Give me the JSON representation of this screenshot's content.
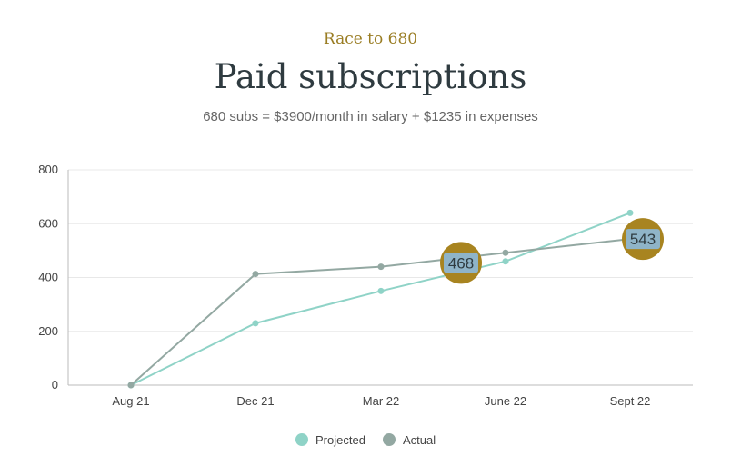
{
  "header": {
    "kicker": "Race to 680",
    "title": "Paid subscriptions",
    "subtitle": "680 subs = $3900/month in salary + $1235 in expenses"
  },
  "colors": {
    "projected": "#8fd3c7",
    "actual": "#93a8a2",
    "annotation_ring": "#a88420",
    "annotation_fill": "#8fb4c8",
    "grid": "#e8e8e8",
    "axis": "#bbbbbb"
  },
  "chart_data": {
    "type": "line",
    "categories": [
      "Aug 21",
      "Dec 21",
      "Mar 22",
      "June 22",
      "Sept 22"
    ],
    "series": [
      {
        "name": "Projected",
        "values": [
          0,
          230,
          350,
          460,
          640
        ]
      },
      {
        "name": "Actual",
        "values": [
          0,
          413,
          440,
          492,
          543
        ]
      }
    ],
    "ylim": [
      0,
      800
    ],
    "yticks": [
      0,
      200,
      400,
      600,
      800
    ],
    "grid": true,
    "legend": "bottom-center",
    "annotations": [
      {
        "label": "468",
        "x": "Mar 22–June 22",
        "y": 468
      },
      {
        "label": "543",
        "x": "Sept 22",
        "y": 543
      }
    ]
  }
}
